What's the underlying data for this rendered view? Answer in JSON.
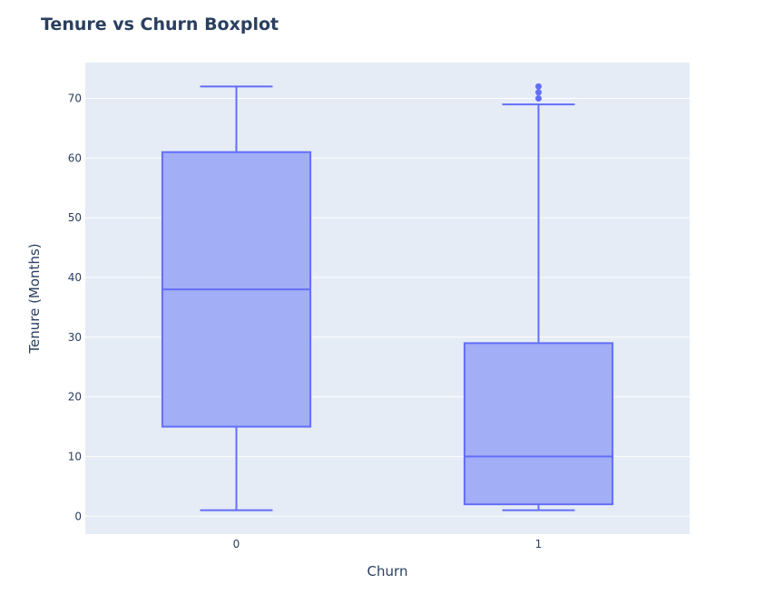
{
  "chart_data": {
    "type": "box",
    "title": "Tenure vs Churn Boxplot",
    "xlabel": "Churn",
    "ylabel": "Tenure (Months)",
    "categories": [
      "0",
      "1"
    ],
    "ylim": [
      -3,
      76
    ],
    "y_ticks": [
      0,
      10,
      20,
      30,
      40,
      50,
      60,
      70
    ],
    "grid": true,
    "colors": {
      "plot_bg": "#e5ecf6",
      "box_fill": "#a2aef6",
      "box_line": "#636efa",
      "text": "#2a3f5f",
      "grid": "#ffffff"
    },
    "boxes": [
      {
        "category": "0",
        "min": 1,
        "q1": 15,
        "median": 38,
        "q3": 61,
        "max": 72,
        "outliers": []
      },
      {
        "category": "1",
        "min": 1,
        "q1": 2,
        "median": 10,
        "q3": 29,
        "max": 69,
        "outliers": [
          70,
          71,
          72
        ]
      }
    ]
  }
}
